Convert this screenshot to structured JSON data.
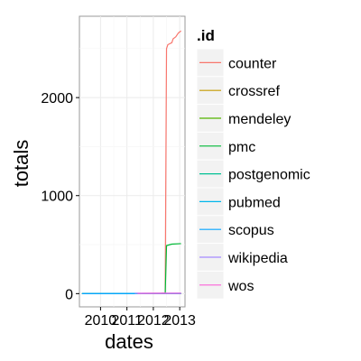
{
  "chart_data": {
    "type": "line",
    "xlabel": "dates",
    "ylabel": "totals",
    "x_tick_labels": [
      "2010",
      "2011",
      "2012",
      "2013"
    ],
    "x_tick_values": [
      2010,
      2011,
      2012,
      2013
    ],
    "xlim": [
      2009.2,
      2013.2
    ],
    "y_tick_labels": [
      "0",
      "1000",
      "2000"
    ],
    "y_tick_values": [
      0,
      1000,
      2000
    ],
    "ylim": [
      -135,
      2830
    ],
    "grid": true,
    "legend": {
      "title": ".id",
      "position": "right"
    },
    "series": [
      {
        "name": "counter",
        "color": "#F8766D",
        "points": [
          [
            2009.3,
            0
          ],
          [
            2010.0,
            0
          ],
          [
            2011.0,
            1
          ],
          [
            2012.0,
            3
          ],
          [
            2012.3,
            5
          ],
          [
            2012.45,
            8
          ],
          [
            2012.5,
            2500
          ],
          [
            2012.55,
            2540
          ],
          [
            2012.7,
            2560
          ],
          [
            2012.75,
            2600
          ],
          [
            2012.85,
            2620
          ],
          [
            2012.95,
            2660
          ],
          [
            2013.05,
            2680
          ]
        ]
      },
      {
        "name": "crossref",
        "color": "#C49A00",
        "points": [
          [
            2009.3,
            0
          ],
          [
            2013.05,
            1
          ]
        ]
      },
      {
        "name": "mendeley",
        "color": "#53B400",
        "points": [
          [
            2009.3,
            0
          ],
          [
            2013.05,
            2
          ]
        ]
      },
      {
        "name": "pmc",
        "color": "#00B936",
        "points": [
          [
            2009.3,
            0
          ],
          [
            2012.45,
            1
          ],
          [
            2012.5,
            490
          ],
          [
            2012.7,
            505
          ],
          [
            2013.05,
            510
          ]
        ]
      },
      {
        "name": "postgenomic",
        "color": "#00C094",
        "points": [
          [
            2009.3,
            0
          ],
          [
            2013.05,
            0
          ]
        ]
      },
      {
        "name": "pubmed",
        "color": "#00B6EB",
        "points": [
          [
            2009.3,
            0
          ],
          [
            2013.05,
            0
          ]
        ]
      },
      {
        "name": "scopus",
        "color": "#06A4FF",
        "points": [
          [
            2009.3,
            0
          ],
          [
            2013.05,
            3
          ]
        ]
      },
      {
        "name": "wikipedia",
        "color": "#A58AFF",
        "points": [
          [
            2011.3,
            4
          ],
          [
            2013.05,
            5
          ]
        ]
      },
      {
        "name": "wos",
        "color": "#FB61D7",
        "points": [
          [
            2011.4,
            2
          ],
          [
            2013.05,
            3
          ]
        ]
      }
    ]
  }
}
